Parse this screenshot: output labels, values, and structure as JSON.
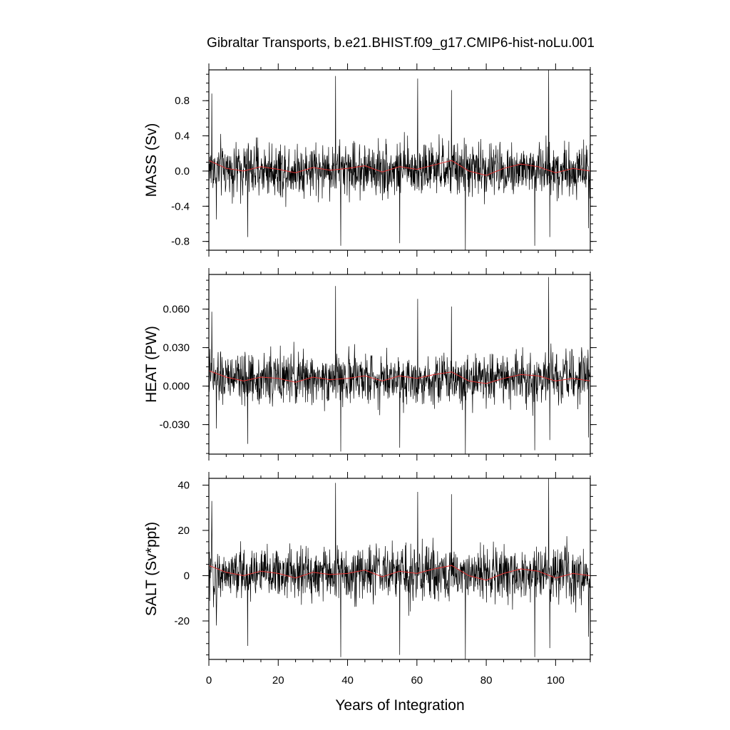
{
  "title": "Gibraltar Transports, b.e21.BHIST.f09_g17.CMIP6-hist-noLu.001",
  "xlabel": "Years of Integration",
  "colors": {
    "series": "#000000",
    "smooth": "#e03030",
    "axes": "#000000"
  },
  "chart_data": [
    {
      "type": "line",
      "panel": "MASS",
      "ylabel": "MASS (Sv)",
      "xlim": [
        0,
        110
      ],
      "ylim": [
        -0.9,
        1.15
      ],
      "yticks": [
        -0.8,
        -0.4,
        0.0,
        0.4,
        0.8
      ],
      "ytick_labels": [
        "-0.8",
        "-0.4",
        "0.0",
        "0.4",
        "0.8"
      ],
      "xticks": [
        0,
        20,
        40,
        60,
        80,
        100
      ],
      "xtick_labels": [
        "0",
        "20",
        "40",
        "60",
        "80",
        "100"
      ],
      "series": [
        {
          "name": "",
          "kind": "monthly",
          "amplitude": 0.22,
          "mean": 0.02,
          "spikes": [
            [
              0.8,
              0.88
            ],
            [
              2.2,
              -0.55
            ],
            [
              11.2,
              -0.75
            ],
            [
              36.5,
              1.08
            ],
            [
              38.0,
              -0.85
            ],
            [
              55.0,
              -0.82
            ],
            [
              60.2,
              1.05
            ],
            [
              70.0,
              0.92
            ],
            [
              74.0,
              -0.9
            ],
            [
              94.0,
              -0.85
            ],
            [
              98.0,
              1.15
            ],
            [
              98.3,
              -0.75
            ],
            [
              109.5,
              -0.65
            ]
          ]
        },
        {
          "name": "",
          "kind": "annual-mean",
          "x": [
            0,
            5,
            10,
            15,
            20,
            25,
            30,
            35,
            40,
            45,
            50,
            55,
            60,
            65,
            70,
            75,
            80,
            85,
            90,
            95,
            100,
            105,
            110
          ],
          "values": [
            0.12,
            0.03,
            0.0,
            0.05,
            0.02,
            -0.02,
            0.04,
            0.01,
            0.03,
            0.06,
            -0.01,
            0.05,
            0.02,
            0.07,
            0.12,
            0.0,
            -0.05,
            0.03,
            0.08,
            0.05,
            -0.02,
            0.03,
            0.0
          ]
        }
      ]
    },
    {
      "type": "line",
      "panel": "HEAT",
      "ylabel": "HEAT (PW)",
      "xlim": [
        0,
        110
      ],
      "ylim": [
        -0.053,
        0.087
      ],
      "yticks": [
        -0.03,
        0.0,
        0.03,
        0.06
      ],
      "ytick_labels": [
        "-0.030",
        "0.000",
        "0.030",
        "0.060"
      ],
      "xticks": [
        0,
        20,
        40,
        60,
        80,
        100
      ],
      "xtick_labels": [
        "0",
        "20",
        "40",
        "60",
        "80",
        "100"
      ],
      "series": [
        {
          "name": "",
          "kind": "monthly",
          "amplitude": 0.014,
          "mean": 0.006,
          "spikes": [
            [
              0.8,
              0.058
            ],
            [
              2.2,
              -0.033
            ],
            [
              11.2,
              -0.045
            ],
            [
              36.5,
              0.078
            ],
            [
              38.0,
              -0.051
            ],
            [
              55.0,
              -0.048
            ],
            [
              60.2,
              0.068
            ],
            [
              70.0,
              0.062
            ],
            [
              74.0,
              -0.053
            ],
            [
              94.0,
              -0.05
            ],
            [
              98.0,
              0.085
            ],
            [
              98.3,
              -0.042
            ],
            [
              109.5,
              -0.04
            ]
          ]
        },
        {
          "name": "",
          "kind": "annual-mean",
          "x": [
            0,
            5,
            10,
            15,
            20,
            25,
            30,
            35,
            40,
            45,
            50,
            55,
            60,
            65,
            70,
            75,
            80,
            85,
            90,
            95,
            100,
            105,
            110
          ],
          "values": [
            0.012,
            0.007,
            0.004,
            0.007,
            0.006,
            0.003,
            0.007,
            0.005,
            0.006,
            0.008,
            0.004,
            0.008,
            0.006,
            0.009,
            0.011,
            0.004,
            0.002,
            0.006,
            0.009,
            0.008,
            0.004,
            0.006,
            0.004
          ]
        }
      ]
    },
    {
      "type": "line",
      "panel": "SALT",
      "ylabel": "SALT (Sv*ppt)",
      "xlim": [
        0,
        110
      ],
      "ylim": [
        -37,
        43
      ],
      "yticks": [
        -20,
        0,
        20,
        40
      ],
      "ytick_labels": [
        "-20",
        "0",
        "20",
        "40"
      ],
      "xticks": [
        0,
        20,
        40,
        60,
        80,
        100
      ],
      "xtick_labels": [
        "0",
        "20",
        "40",
        "60",
        "80",
        "100"
      ],
      "series": [
        {
          "name": "",
          "kind": "monthly",
          "amplitude": 8.5,
          "mean": 1.0,
          "spikes": [
            [
              0.8,
              33
            ],
            [
              2.2,
              -22
            ],
            [
              11.2,
              -31
            ],
            [
              36.5,
              41
            ],
            [
              38.0,
              -36
            ],
            [
              55.0,
              -35
            ],
            [
              60.2,
              37
            ],
            [
              70.0,
              36
            ],
            [
              74.0,
              -37
            ],
            [
              94.0,
              -36
            ],
            [
              98.0,
              43
            ],
            [
              98.3,
              -32
            ],
            [
              109.5,
              -27
            ]
          ]
        },
        {
          "name": "",
          "kind": "annual-mean",
          "x": [
            0,
            5,
            10,
            15,
            20,
            25,
            30,
            35,
            40,
            45,
            50,
            55,
            60,
            65,
            70,
            75,
            80,
            85,
            90,
            95,
            100,
            105,
            110
          ],
          "values": [
            4.5,
            1.5,
            0.0,
            2.0,
            1.0,
            -1.0,
            1.5,
            0.5,
            1.0,
            2.5,
            -0.5,
            2.0,
            1.0,
            3.0,
            4.5,
            0.0,
            -2.0,
            1.0,
            3.0,
            2.0,
            -1.0,
            1.0,
            0.0
          ]
        }
      ]
    }
  ]
}
